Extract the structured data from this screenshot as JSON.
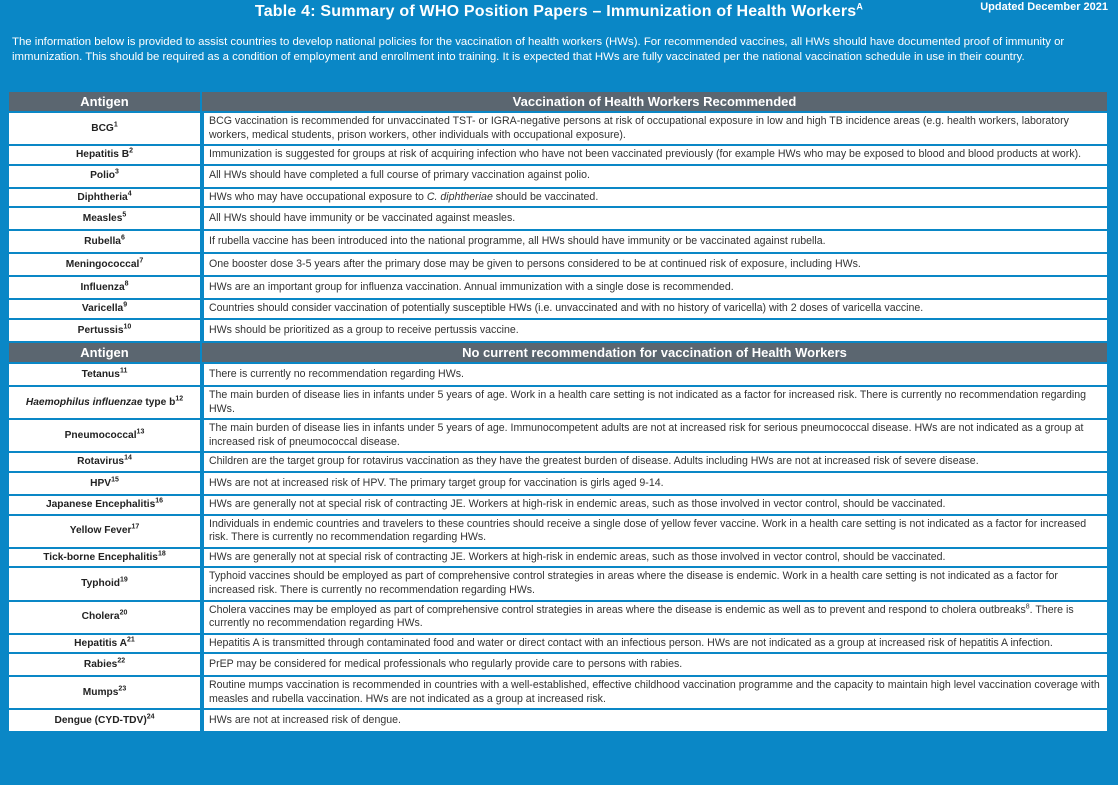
{
  "title": "Table 4: Summary of WHO Position Papers – Immunization of Health Workers",
  "title_sup": "A",
  "updated": "Updated December 2021",
  "intro": "The information below is provided to assist countries to develop national policies for the vaccination of health workers (HWs). For recommended vaccines, all HWs should have documented proof of immunity or immunization.  This should be required as a condition of employment and enrollment into training. It is expected that HWs are fully vaccinated per the national vaccination schedule in use in their country.",
  "section1": {
    "col1": "Antigen",
    "col2": "Vaccination of Health Workers Recommended",
    "rows": [
      {
        "name": "BCG",
        "sup": "1",
        "text": "BCG vaccination is recommended for unvaccinated TST- or IGRA-negative persons at risk of occupational exposure in low and high TB incidence areas (e.g. health workers, laboratory workers, medical students, prison workers, other individuals with occupational exposure)."
      },
      {
        "name": "Hepatitis B",
        "sup": "2",
        "text": "Immunization is suggested for groups at risk of acquiring infection who have not been vaccinated previously (for example HWs who may be exposed to blood and blood products at work)."
      },
      {
        "name": "Polio",
        "sup": "3",
        "text": "All HWs should have completed a full course of primary vaccination against polio."
      },
      {
        "name": "Diphtheria",
        "sup": "4",
        "text": "HWs who may have occupational exposure to ",
        "italic": "C. diphtheriae",
        "text_after": " should be vaccinated."
      },
      {
        "name": "Measles",
        "sup": "5",
        "text": "All HWs should have immunity or be vaccinated against measles."
      },
      {
        "name": "Rubella",
        "sup": "6",
        "text": "If rubella vaccine has been introduced into the national programme, all HWs should have immunity or be vaccinated against rubella."
      },
      {
        "name": "Meningococcal",
        "sup": "7",
        "text": "One booster dose 3-5 years after the primary dose may be given to persons considered to be at continued risk of exposure, including HWs."
      },
      {
        "name": "Influenza",
        "sup": "8",
        "text": "HWs are an important group for influenza vaccination. Annual immunization with a single dose is recommended."
      },
      {
        "name": "Varicella",
        "sup": "9",
        "text": "Countries should consider vaccination of potentially susceptible HWs (i.e. unvaccinated and with no history of varicella) with 2 doses of varicella vaccine."
      },
      {
        "name": "Pertussis",
        "sup": "10",
        "text": "HWs should be prioritized as a group to receive pertussis vaccine."
      }
    ]
  },
  "section2": {
    "col1": "Antigen",
    "col2": "No current recommendation for vaccination of Health Workers",
    "rows": [
      {
        "name": "Tetanus",
        "sup": "11",
        "text": "There is currently no recommendation regarding HWs."
      },
      {
        "name_italic": "Haemophilus influenzae",
        "name": " type b",
        "sup": "12",
        "text": "The main burden of disease lies in infants under 5 years of age. Work in a health care setting is not indicated as a factor for increased risk. There is currently no recommendation regarding HWs."
      },
      {
        "name": "Pneumococcal",
        "sup": "13",
        "text": "The main burden of disease lies in infants under 5 years of age. Immunocompetent adults are not at increased risk for serious pneumococcal disease. HWs are not indicated as a group at increased risk of pneumococcal disease."
      },
      {
        "name": "Rotavirus",
        "sup": "14",
        "text": "Children are the target group for rotavirus vaccination as they have the greatest burden of disease. Adults including HWs are not at increased risk of severe disease."
      },
      {
        "name": "HPV",
        "sup": "15",
        "text": "HWs are not at increased risk of HPV. The primary target group for vaccination is girls aged 9-14."
      },
      {
        "name": "Japanese Encephalitis",
        "sup": "16",
        "text": "HWs are generally not at special risk of contracting JE. Workers at high-risk in endemic areas, such as those involved in vector control, should be vaccinated."
      },
      {
        "name": "Yellow Fever",
        "sup": "17",
        "text": "Individuals in endemic countries and travelers to these countries should receive a single dose of yellow fever vaccine. Work in a health care setting is not indicated as a factor for increased risk. There is currently no recommendation regarding HWs."
      },
      {
        "name": "Tick-borne Encephalitis",
        "sup": "18",
        "text": "HWs are generally not at special risk of contracting JE. Workers at high-risk in endemic areas, such as those involved in vector control, should be vaccinated."
      },
      {
        "name": "Typhoid",
        "sup": "19",
        "text": "Typhoid vaccines should be employed as part of comprehensive control strategies in areas where the disease is endemic. Work in a health care setting is not indicated as a factor for increased risk. There is currently no recommendation regarding HWs."
      },
      {
        "name": "Cholera",
        "sup": "20",
        "text": "Cholera vaccines may be employed as part of comprehensive control strategies in areas where the disease is endemic as well as to prevent and respond to cholera outbreaks",
        "text_sup": "8",
        "text_after": ". There is currently no recommendation regarding HWs."
      },
      {
        "name": "Hepatitis A",
        "sup": "21",
        "text": "Hepatitis A is transmitted through contaminated food and water or direct contact with an infectious person. HWs are not indicated as a group at increased risk of hepatitis A infection."
      },
      {
        "name": "Rabies",
        "sup": "22",
        "text": "PrEP may be considered for medical professionals who regularly provide care to persons with rabies."
      },
      {
        "name": "Mumps",
        "sup": "23",
        "text": "Routine mumps vaccination is recommended in countries with a well-established, effective childhood vaccination programme and the capacity to maintain high level vaccination coverage with measles and rubella vaccination. HWs are not indicated as a group at increased risk."
      },
      {
        "name": "Dengue (CYD-TDV)",
        "sup": "24",
        "text": "HWs are not at increased risk of dengue."
      }
    ]
  },
  "colors": {
    "background": "#0a87c6",
    "header": "#5b6670"
  }
}
